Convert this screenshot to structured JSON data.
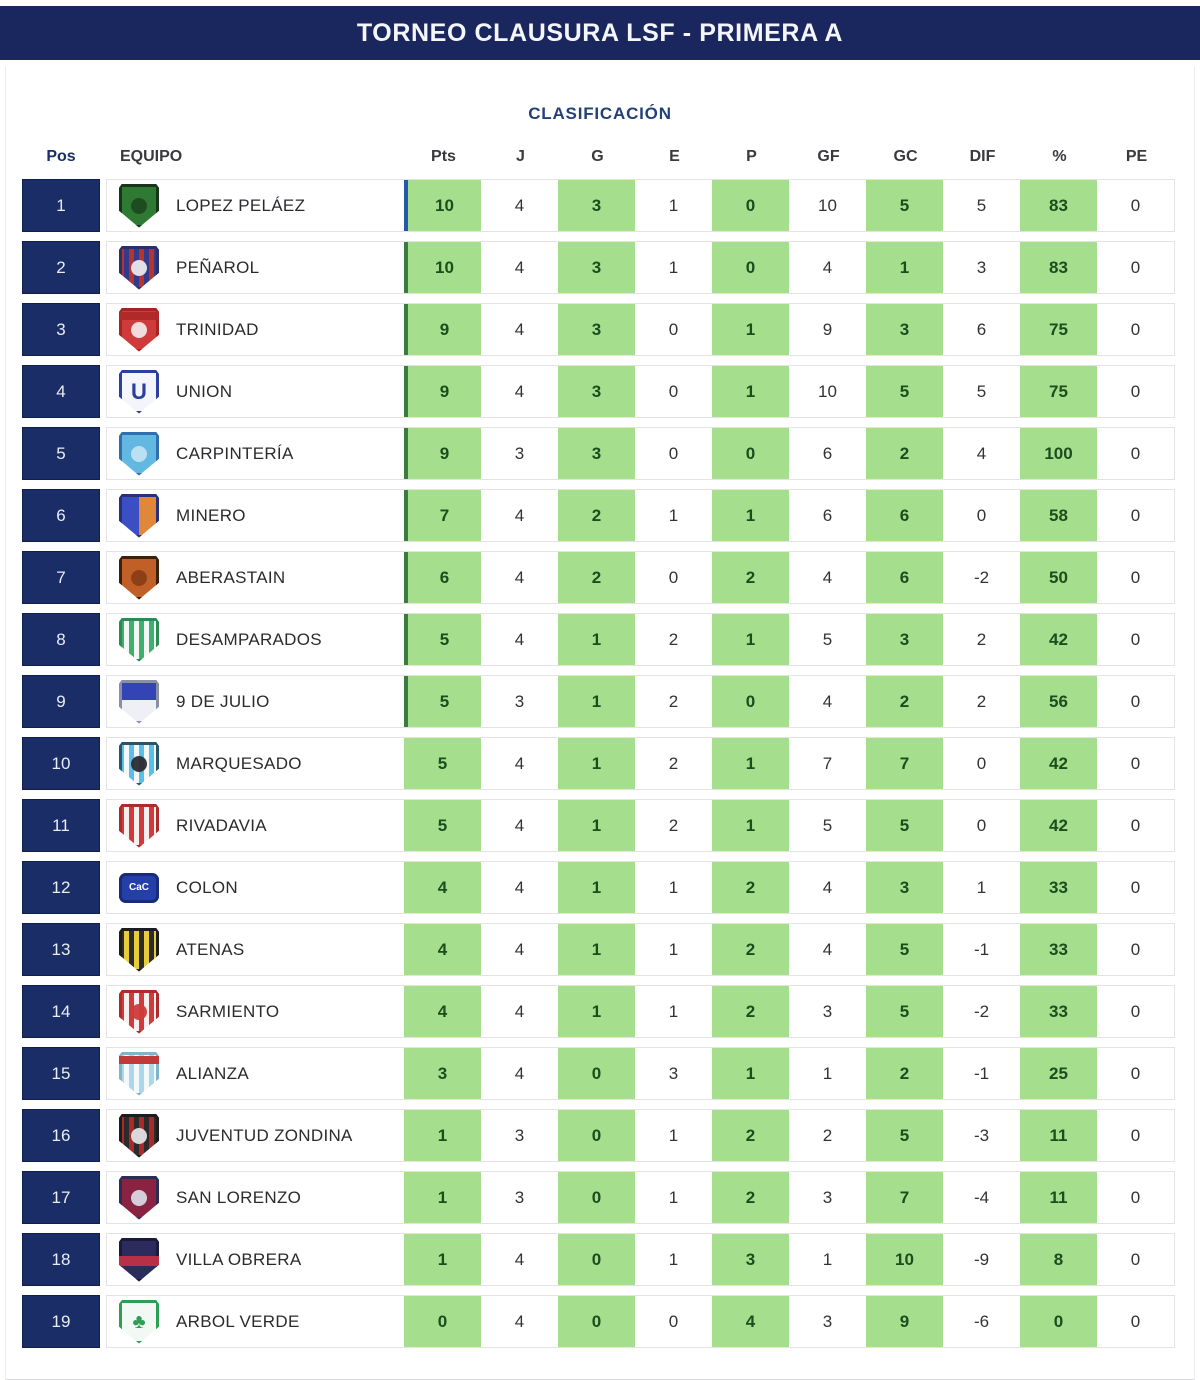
{
  "header": {
    "title": "TORNEO CLAUSURA LSF - PRIMERA A"
  },
  "table": {
    "subtitle": "CLASIFICACIÓN",
    "columns": [
      "Pos",
      "EQUIPO",
      "Pts",
      "J",
      "G",
      "E",
      "P",
      "GF",
      "GC",
      "DIF",
      "%",
      "PE"
    ],
    "green_columns": [
      "Pts",
      "G",
      "P",
      "GC",
      "%"
    ],
    "rows": [
      {
        "pos": "1",
        "team": "LOPEZ PELÁEZ",
        "id": "lopez-pelaez",
        "accent": "blue",
        "stats": [
          "10",
          "4",
          "3",
          "1",
          "0",
          "10",
          "5",
          "5",
          "83",
          "0"
        ],
        "badge": {
          "pattern": "solid",
          "c1": "#2f7a33",
          "border": "#173519",
          "emblem": "#1d4a20"
        }
      },
      {
        "pos": "2",
        "team": "PEÑAROL",
        "id": "penarol",
        "accent": "green",
        "stats": [
          "10",
          "4",
          "3",
          "1",
          "0",
          "4",
          "1",
          "3",
          "83",
          "0"
        ],
        "badge": {
          "pattern": "stripes",
          "c1": "#b5342e",
          "c2": "#333a8c",
          "border": "#2a2f6e",
          "emblem": "#e8e8ee"
        }
      },
      {
        "pos": "3",
        "team": "TRINIDAD",
        "id": "trinidad",
        "accent": "green",
        "stats": [
          "9",
          "4",
          "3",
          "0",
          "1",
          "9",
          "3",
          "6",
          "75",
          "0"
        ],
        "badge": {
          "pattern": "solid",
          "c1": "#cf3a3a",
          "border": "#a82424",
          "emblem": "#f3e6e6",
          "band": "#b02a2a"
        }
      },
      {
        "pos": "4",
        "team": "UNION",
        "id": "union",
        "accent": "green",
        "stats": [
          "9",
          "4",
          "3",
          "0",
          "1",
          "10",
          "5",
          "5",
          "75",
          "0"
        ],
        "badge": {
          "pattern": "solid",
          "c1": "#f4f5fa",
          "border": "#2b3f9e",
          "glyph": "U",
          "glyphColor": "#2b3f9e",
          "glyphSize": "22px"
        }
      },
      {
        "pos": "5",
        "team": "CARPINTERÍA",
        "id": "carpinteria",
        "accent": "green",
        "stats": [
          "9",
          "3",
          "3",
          "0",
          "0",
          "6",
          "2",
          "4",
          "100",
          "0"
        ],
        "badge": {
          "pattern": "solid",
          "c1": "#62b8e0",
          "border": "#2f6fae",
          "emblem": "#bfe2f2"
        }
      },
      {
        "pos": "6",
        "team": "MINERO",
        "id": "minero",
        "accent": "green",
        "stats": [
          "7",
          "4",
          "2",
          "1",
          "1",
          "6",
          "6",
          "0",
          "58",
          "0"
        ],
        "badge": {
          "pattern": "split",
          "c1": "#3b4ec4",
          "c2": "#e0883a",
          "border": "#27307a"
        }
      },
      {
        "pos": "7",
        "team": "ABERASTAIN",
        "id": "aberastain",
        "accent": "green",
        "stats": [
          "6",
          "4",
          "2",
          "0",
          "2",
          "4",
          "6",
          "-2",
          "50",
          "0"
        ],
        "badge": {
          "pattern": "solid",
          "c1": "#c06028",
          "border": "#3c200c",
          "emblem": "#8a3e16"
        }
      },
      {
        "pos": "8",
        "team": "DESAMPARADOS",
        "id": "desamparados",
        "accent": "green",
        "stats": [
          "5",
          "4",
          "1",
          "2",
          "1",
          "5",
          "3",
          "2",
          "42",
          "0"
        ],
        "badge": {
          "pattern": "stripes",
          "c1": "#3daf6f",
          "c2": "#f2f7f3",
          "border": "#2c8a54"
        }
      },
      {
        "pos": "9",
        "team": "9 DE JULIO",
        "id": "9-de-julio",
        "accent": "green",
        "stats": [
          "5",
          "3",
          "1",
          "2",
          "0",
          "4",
          "2",
          "2",
          "56",
          "0"
        ],
        "badge": {
          "pattern": "vsplit",
          "c1": "#3344b4",
          "c2": "#eef0f6",
          "border": "#8a8fa8"
        }
      },
      {
        "pos": "10",
        "team": "MARQUESADO",
        "id": "marquesado",
        "accent": null,
        "stats": [
          "5",
          "4",
          "1",
          "2",
          "1",
          "7",
          "7",
          "0",
          "42",
          "0"
        ],
        "badge": {
          "pattern": "stripes",
          "c1": "#58c0e8",
          "c2": "#f4f7f8",
          "border": "#28556a",
          "emblem": "#2b2b30"
        }
      },
      {
        "pos": "11",
        "team": "RIVADAVIA",
        "id": "rivadavia",
        "accent": null,
        "stats": [
          "5",
          "4",
          "1",
          "2",
          "1",
          "5",
          "5",
          "0",
          "42",
          "0"
        ],
        "badge": {
          "pattern": "stripes",
          "c1": "#cf3a3a",
          "c2": "#f6efef",
          "border": "#b02a2a"
        }
      },
      {
        "pos": "12",
        "team": "COLON",
        "id": "colon",
        "accent": null,
        "stats": [
          "4",
          "4",
          "1",
          "1",
          "2",
          "4",
          "3",
          "1",
          "33",
          "0"
        ],
        "badge": {
          "pattern": "solid",
          "c1": "#2440a8",
          "border": "#182c7a",
          "shape": "rect",
          "glyph": "CaC",
          "glyphColor": "#ffffff",
          "glyphSize": "10px"
        }
      },
      {
        "pos": "13",
        "team": "ATENAS",
        "id": "atenas",
        "accent": null,
        "stats": [
          "4",
          "4",
          "1",
          "1",
          "2",
          "4",
          "5",
          "-1",
          "33",
          "0"
        ],
        "badge": {
          "pattern": "stripes",
          "c1": "#2b2b2b",
          "c2": "#e8cc3a",
          "border": "#1c1c1c"
        }
      },
      {
        "pos": "14",
        "team": "SARMIENTO",
        "id": "sarmiento",
        "accent": null,
        "stats": [
          "4",
          "4",
          "1",
          "1",
          "2",
          "3",
          "5",
          "-2",
          "33",
          "0"
        ],
        "badge": {
          "pattern": "stripes",
          "c1": "#cf3a3a",
          "c2": "#f6efef",
          "border": "#b02a2a",
          "emblem": "#cf3a3a"
        }
      },
      {
        "pos": "15",
        "team": "ALIANZA",
        "id": "alianza",
        "accent": null,
        "stats": [
          "3",
          "4",
          "0",
          "3",
          "1",
          "1",
          "2",
          "-1",
          "25",
          "0"
        ],
        "badge": {
          "pattern": "stripes",
          "c1": "#a8d8ea",
          "c2": "#f4f8fa",
          "border": "#7fb4cc",
          "band": "#c03a3a"
        }
      },
      {
        "pos": "16",
        "team": "JUVENTUD ZONDINA",
        "id": "juventud-zondina",
        "accent": null,
        "stats": [
          "1",
          "3",
          "0",
          "1",
          "2",
          "2",
          "5",
          "-3",
          "11",
          "0"
        ],
        "badge": {
          "pattern": "stripes",
          "c1": "#a82a2a",
          "c2": "#2b2b2b",
          "border": "#1c1c1c",
          "emblem": "#e0e0e6"
        }
      },
      {
        "pos": "17",
        "team": "SAN LORENZO",
        "id": "san-lorenzo",
        "accent": null,
        "stats": [
          "1",
          "3",
          "0",
          "1",
          "2",
          "3",
          "7",
          "-4",
          "11",
          "0"
        ],
        "badge": {
          "pattern": "solid",
          "c1": "#8a2342",
          "border": "#2c2c54",
          "emblem": "#d8d8e2"
        }
      },
      {
        "pos": "18",
        "team": "VILLA OBRERA",
        "id": "villa-obrera",
        "accent": null,
        "stats": [
          "1",
          "4",
          "0",
          "1",
          "3",
          "1",
          "10",
          "-9",
          "8",
          "0"
        ],
        "badge": {
          "pattern": "solid",
          "c1": "#2b2b5e",
          "border": "#1a1a3a",
          "midband": "#b83048"
        }
      },
      {
        "pos": "19",
        "team": "ARBOL VERDE",
        "id": "arbol-verde",
        "accent": null,
        "stats": [
          "0",
          "4",
          "0",
          "0",
          "4",
          "3",
          "9",
          "-6",
          "0",
          "0"
        ],
        "badge": {
          "pattern": "solid",
          "c1": "#f2f8f3",
          "border": "#2f9e55",
          "glyph": "♣",
          "glyphColor": "#2f9e55",
          "glyphSize": "20px"
        }
      }
    ]
  },
  "colors": {
    "navy_header": "#19275e",
    "navy_pos": "#1b2d66",
    "green_cell": "#a5df8d",
    "green_text": "#1d4c1d",
    "accent_blue": "#2458a8",
    "accent_green": "#3c7a3e",
    "row_border": "#e2e2e8",
    "subtitle_text": "#24407a"
  }
}
